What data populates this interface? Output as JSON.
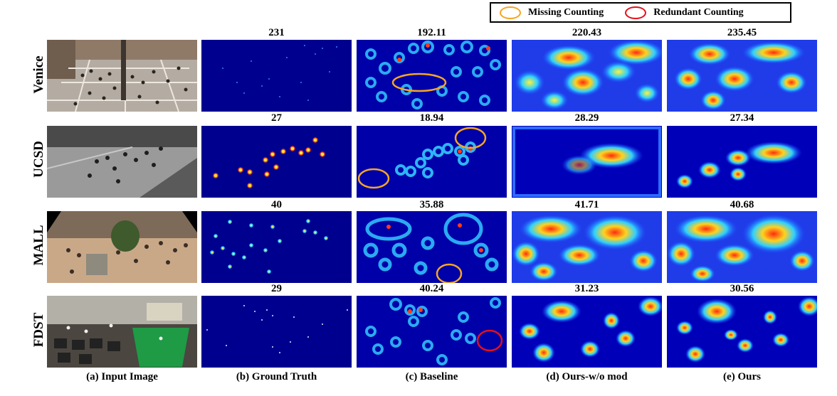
{
  "legend": {
    "missing": "Missing Counting",
    "redundant": "Redundant Counting"
  },
  "columns": [
    "(a) Input Image",
    "(b) Ground Truth",
    "(c) Baseline",
    "(d) Ours-w/o mod",
    "(e) Ours"
  ],
  "rows": [
    {
      "name": "Venice",
      "counts": [
        "231",
        "192.11",
        "220.43",
        "235.45"
      ]
    },
    {
      "name": "UCSD",
      "counts": [
        "27",
        "18.94",
        "28.29",
        "27.34"
      ]
    },
    {
      "name": "MALL",
      "counts": [
        "40",
        "35.88",
        "41.71",
        "40.68"
      ]
    },
    {
      "name": "FDST",
      "counts": [
        "29",
        "40.24",
        "31.23",
        "30.56"
      ]
    }
  ]
}
